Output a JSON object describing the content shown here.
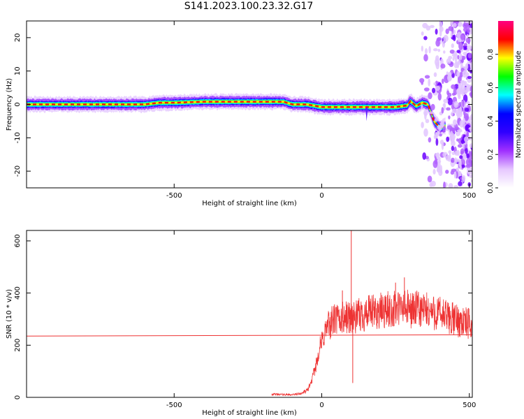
{
  "title": "S141.2023.100.23.32.G17",
  "chart_data": [
    {
      "type": "heatmap",
      "xlabel": "Height of straight line (km)",
      "ylabel": "Frequency (Hz)",
      "xlim": [
        -1000,
        510
      ],
      "ylim": [
        -25,
        25
      ],
      "xticks": [
        -500,
        0,
        500
      ],
      "yticks": [
        -20,
        -10,
        0,
        10,
        20
      ],
      "grid": false,
      "colorbar": {
        "label": "Normalized spectral amplitude",
        "range": [
          0,
          1
        ],
        "ticks": [
          "0.0",
          "0.2",
          "0.4",
          "0.6",
          "0.8"
        ],
        "colors": [
          "#ffffff",
          "#e6c8ff",
          "#a030ff",
          "#3000ff",
          "#0000ff",
          "#00ffff",
          "#00ff00",
          "#ffff00",
          "#ff0000",
          "#ff0080"
        ]
      },
      "ridge": {
        "x": [
          -1000,
          -900,
          -800,
          -700,
          -600,
          -550,
          -500,
          -400,
          -300,
          -200,
          -130,
          -100,
          -50,
          0,
          50,
          100,
          150,
          200,
          250,
          290,
          300,
          320,
          340,
          360,
          380,
          400,
          420
        ],
        "frequency": [
          0,
          0,
          0,
          0,
          0,
          0.5,
          0.5,
          0.8,
          0.8,
          0.8,
          0.8,
          0,
          0,
          -0.8,
          -0.8,
          -0.8,
          -0.8,
          -0.8,
          -0.8,
          -0.3,
          1.0,
          -0.5,
          0.5,
          0,
          -5,
          -7,
          -6.5
        ]
      },
      "noise_region_x": [
        320,
        510
      ]
    },
    {
      "type": "line",
      "xlabel": "Height of straight line (km)",
      "ylabel": "SNR (10 * v/v)",
      "xlim": [
        -1000,
        510
      ],
      "ylim": [
        0,
        640
      ],
      "xticks": [
        -500,
        0,
        500
      ],
      "yticks": [
        0,
        200,
        400,
        600
      ],
      "grid": false,
      "series": [
        {
          "color": "#ee3333",
          "x": [
            -1000,
            510
          ],
          "y": [
            235,
            240
          ]
        },
        {
          "color": "#ee3333",
          "x": [
            -170,
            -100,
            -70,
            -50,
            -35,
            -20,
            -10,
            0,
            10,
            25,
            40,
            60,
            80,
            100,
            110,
            130,
            150,
            180,
            200,
            230,
            260,
            280,
            300,
            330,
            360,
            400,
            430,
            460,
            480,
            500,
            510
          ],
          "y": [
            12,
            10,
            15,
            25,
            60,
            120,
            180,
            210,
            250,
            280,
            295,
            300,
            305,
            310,
            300,
            315,
            320,
            325,
            330,
            335,
            340,
            340,
            338,
            335,
            330,
            320,
            305,
            295,
            290,
            280,
            275
          ],
          "spikes": [
            {
              "x": 100,
              "y": 640
            },
            {
              "x": 105,
              "y": 55
            },
            {
              "x": 280,
              "y": 460
            },
            {
              "x": 250,
              "y": 440
            },
            {
              "x": 70,
              "y": 410
            }
          ]
        }
      ]
    }
  ]
}
